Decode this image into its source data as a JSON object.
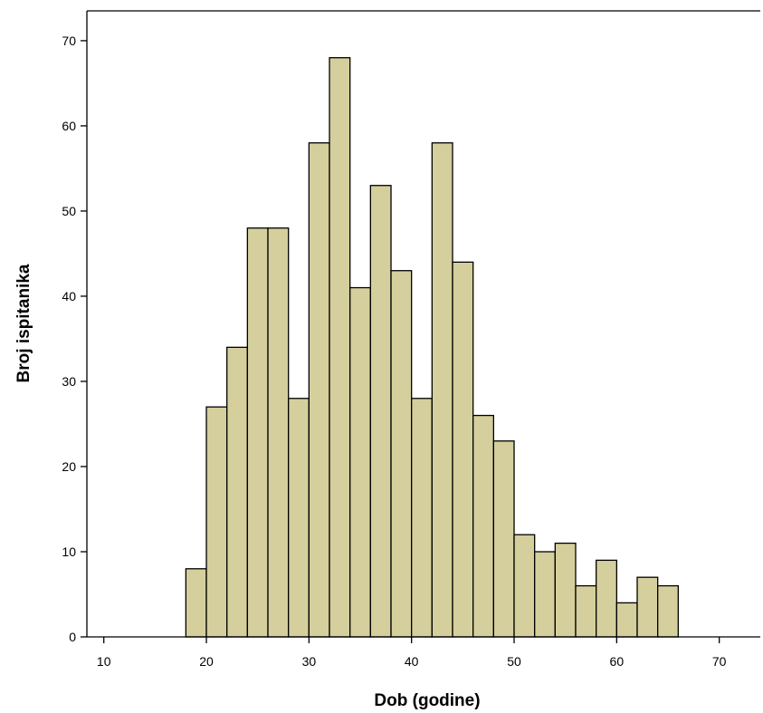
{
  "chart_data": {
    "type": "bar",
    "xlabel": "Dob (godine)",
    "ylabel": "Broj ispitanika",
    "xlim": [
      8.35,
      74
    ],
    "ylim": [
      0,
      73.5
    ],
    "bin_width": 2,
    "x_ticks": [
      10,
      20,
      30,
      40,
      50,
      60,
      70
    ],
    "y_ticks": [
      0,
      10,
      20,
      30,
      40,
      50,
      60,
      70
    ],
    "bins": [
      {
        "x0": 18,
        "x1": 20,
        "value": 8
      },
      {
        "x0": 20,
        "x1": 22,
        "value": 27
      },
      {
        "x0": 22,
        "x1": 24,
        "value": 34
      },
      {
        "x0": 24,
        "x1": 26,
        "value": 48
      },
      {
        "x0": 26,
        "x1": 28,
        "value": 48
      },
      {
        "x0": 28,
        "x1": 30,
        "value": 28
      },
      {
        "x0": 30,
        "x1": 32,
        "value": 58
      },
      {
        "x0": 32,
        "x1": 34,
        "value": 68
      },
      {
        "x0": 34,
        "x1": 36,
        "value": 41
      },
      {
        "x0": 36,
        "x1": 38,
        "value": 53
      },
      {
        "x0": 38,
        "x1": 40,
        "value": 43
      },
      {
        "x0": 40,
        "x1": 42,
        "value": 28
      },
      {
        "x0": 42,
        "x1": 44,
        "value": 58
      },
      {
        "x0": 44,
        "x1": 46,
        "value": 44
      },
      {
        "x0": 46,
        "x1": 48,
        "value": 26
      },
      {
        "x0": 48,
        "x1": 50,
        "value": 23
      },
      {
        "x0": 50,
        "x1": 52,
        "value": 12
      },
      {
        "x0": 52,
        "x1": 54,
        "value": 10
      },
      {
        "x0": 54,
        "x1": 56,
        "value": 11
      },
      {
        "x0": 56,
        "x1": 58,
        "value": 6
      },
      {
        "x0": 58,
        "x1": 60,
        "value": 9
      },
      {
        "x0": 60,
        "x1": 62,
        "value": 4
      },
      {
        "x0": 62,
        "x1": 64,
        "value": 7
      },
      {
        "x0": 64,
        "x1": 66,
        "value": 6
      }
    ],
    "bar_color": "#d4cf9c",
    "bar_stroke": "#000000",
    "grid": false,
    "legend": "none"
  }
}
